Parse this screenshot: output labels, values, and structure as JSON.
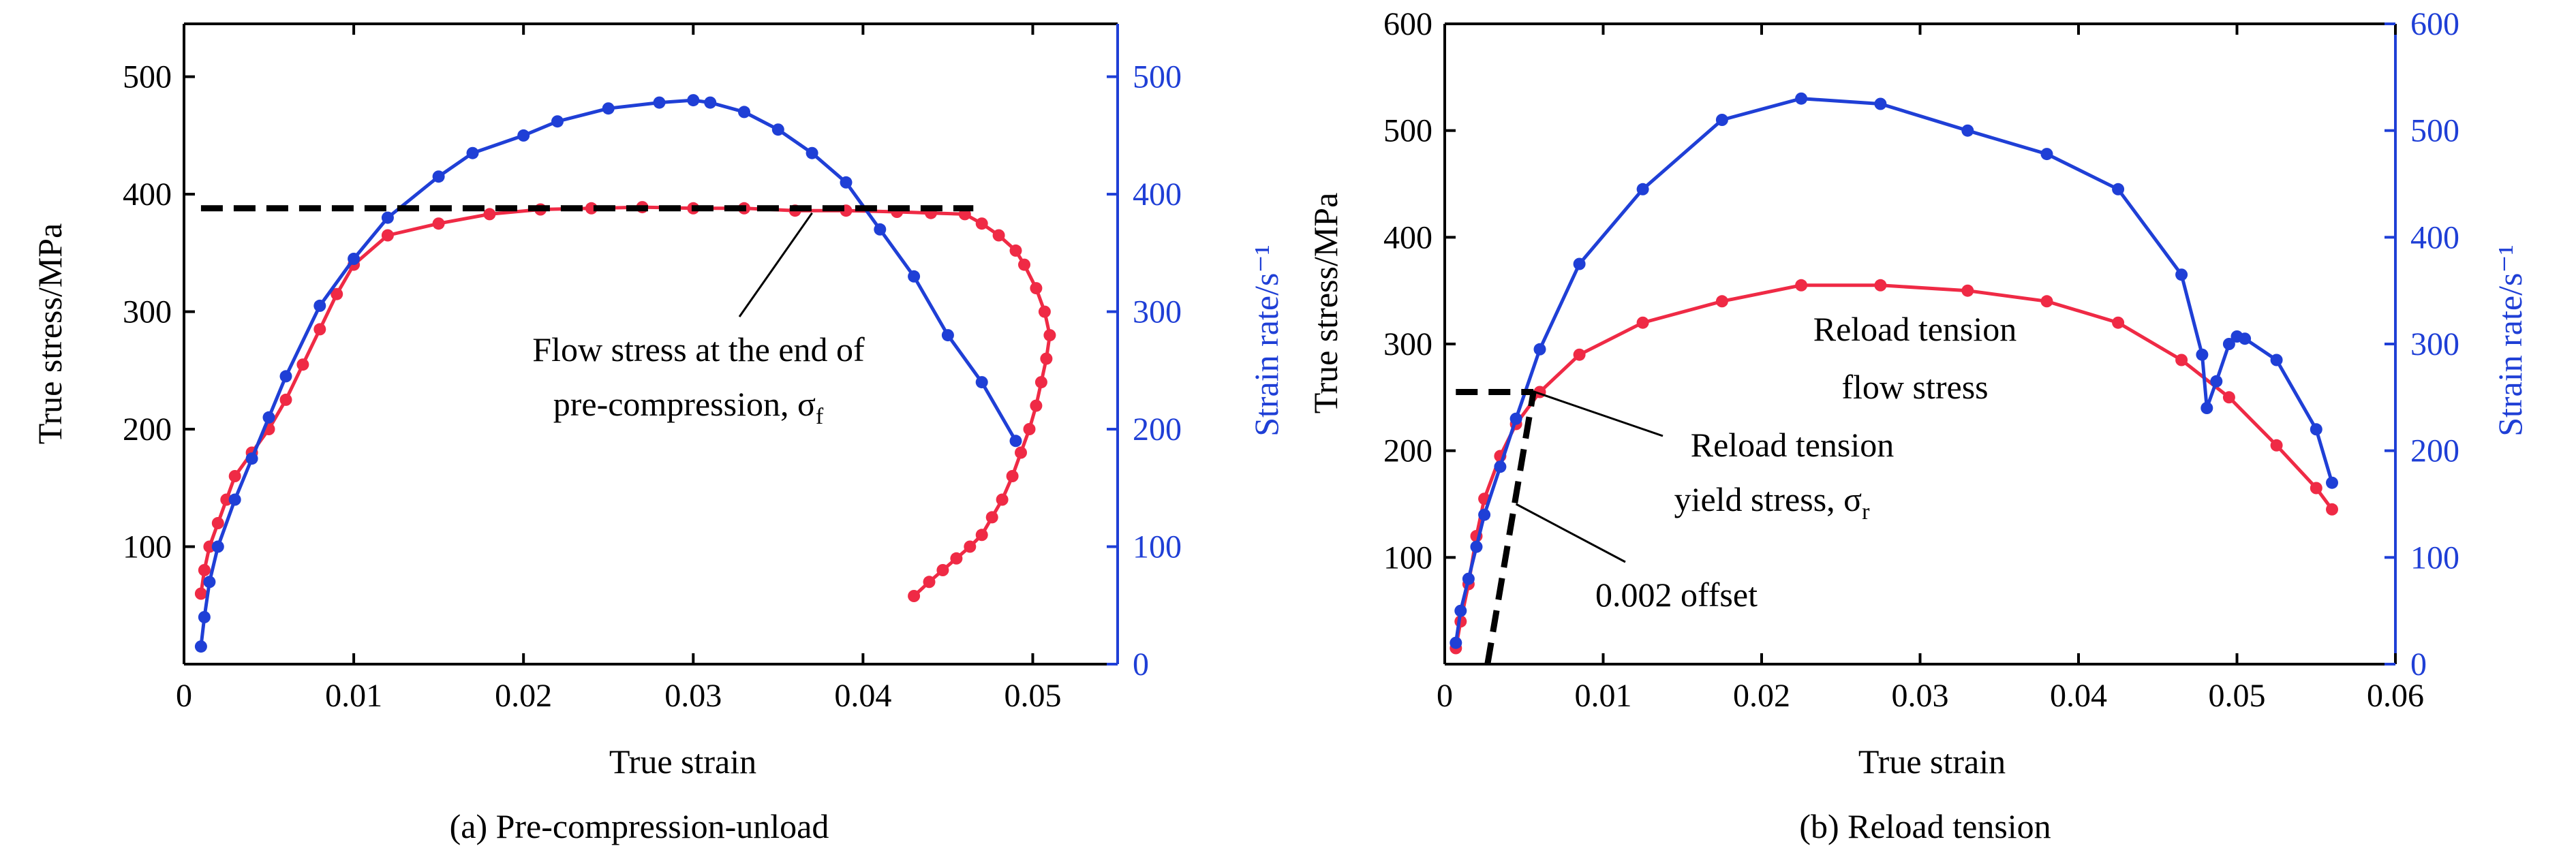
{
  "colors": {
    "stress": "#ef2a45",
    "rate": "#1f3fd6",
    "axis": "#000000"
  },
  "chart_data": [
    {
      "type": "line",
      "caption": "(a) Pre-compression-unload",
      "xlabel": "True strain",
      "ylabel": "True stress/MPa",
      "y2label": "Strain rate/s⁻¹",
      "xlim": [
        0,
        0.055
      ],
      "ylim": [
        0,
        545
      ],
      "y2lim": [
        0,
        545
      ],
      "x_ticks": [
        0,
        0.01,
        0.02,
        0.03,
        0.04,
        0.05
      ],
      "x_tick_labels": [
        "0",
        "0.01",
        "0.02",
        "0.03",
        "0.04",
        "0.05"
      ],
      "y_ticks": [
        100,
        200,
        300,
        400,
        500
      ],
      "y_tick_labels": [
        "100",
        "200",
        "300",
        "400",
        "500"
      ],
      "y2_ticks": [
        0,
        100,
        200,
        300,
        400,
        500
      ],
      "y2_tick_labels": [
        "0",
        "100",
        "200",
        "300",
        "400",
        "500"
      ],
      "series": [
        {
          "axis": "left",
          "color": "#ef2a45",
          "x": [
            0.001,
            0.0012,
            0.0015,
            0.002,
            0.0025,
            0.003,
            0.004,
            0.005,
            0.006,
            0.007,
            0.008,
            0.009,
            0.01,
            0.012,
            0.015,
            0.018,
            0.021,
            0.024,
            0.027,
            0.03,
            0.033,
            0.036,
            0.039,
            0.042,
            0.044,
            0.046,
            0.047,
            0.048,
            0.049,
            0.0495,
            0.0502,
            0.0507,
            0.051,
            0.0508,
            0.0505,
            0.0502,
            0.0498,
            0.0493,
            0.0488,
            0.0482,
            0.0476,
            0.047,
            0.0463,
            0.0455,
            0.0447,
            0.0439,
            0.043
          ],
          "y": [
            60,
            80,
            100,
            120,
            140,
            160,
            180,
            200,
            225,
            255,
            285,
            315,
            340,
            365,
            375,
            383,
            387,
            388,
            389,
            388,
            388,
            386,
            386,
            385,
            384,
            383,
            375,
            365,
            352,
            340,
            320,
            300,
            280,
            260,
            240,
            220,
            200,
            180,
            160,
            140,
            125,
            110,
            100,
            90,
            80,
            70,
            58
          ]
        },
        {
          "axis": "right",
          "color": "#1f3fd6",
          "x": [
            0.001,
            0.0012,
            0.0015,
            0.002,
            0.003,
            0.004,
            0.005,
            0.006,
            0.008,
            0.01,
            0.012,
            0.015,
            0.017,
            0.02,
            0.022,
            0.025,
            0.028,
            0.03,
            0.031,
            0.033,
            0.035,
            0.037,
            0.039,
            0.041,
            0.043,
            0.045,
            0.047,
            0.049
          ],
          "y": [
            15,
            40,
            70,
            100,
            140,
            175,
            210,
            245,
            305,
            345,
            380,
            415,
            435,
            450,
            462,
            473,
            478,
            480,
            478,
            470,
            455,
            435,
            410,
            370,
            330,
            280,
            240,
            190
          ]
        }
      ],
      "reference_line": {
        "y": 388,
        "x_from": 0.001,
        "x_to": 0.0465,
        "style": "dashed"
      },
      "annotations": [
        {
          "lines": [
            "Flow stress at the end of",
            "pre-compression, σ",
            "f"
          ],
          "points_to": [
            0.037,
            384
          ]
        }
      ]
    },
    {
      "type": "line",
      "caption": "(b) Reload tension",
      "xlabel": "True strain",
      "ylabel": "True stress/MPa",
      "y2label": "Strain rate/s⁻¹",
      "xlim": [
        0,
        0.06
      ],
      "ylim": [
        0,
        600
      ],
      "y2lim": [
        0,
        600
      ],
      "x_ticks": [
        0,
        0.01,
        0.02,
        0.03,
        0.04,
        0.05,
        0.06
      ],
      "x_tick_labels": [
        "0",
        "0.01",
        "0.02",
        "0.03",
        "0.04",
        "0.05",
        "0.06"
      ],
      "y_ticks": [
        100,
        200,
        300,
        400,
        500,
        600
      ],
      "y_tick_labels": [
        "100",
        "200",
        "300",
        "400",
        "500",
        "600"
      ],
      "y2_ticks": [
        0,
        100,
        200,
        300,
        400,
        500,
        600
      ],
      "y2_tick_labels": [
        "0",
        "100",
        "200",
        "300",
        "400",
        "500",
        "600"
      ],
      "series": [
        {
          "axis": "left",
          "color": "#ef2a45",
          "x": [
            0.0007,
            0.001,
            0.0015,
            0.002,
            0.0025,
            0.0035,
            0.0045,
            0.006,
            0.0085,
            0.0125,
            0.0175,
            0.0225,
            0.0275,
            0.033,
            0.038,
            0.0425,
            0.0465,
            0.0495,
            0.0525,
            0.055,
            0.056
          ],
          "y": [
            15,
            40,
            75,
            120,
            155,
            195,
            225,
            255,
            290,
            320,
            340,
            355,
            355,
            350,
            340,
            320,
            285,
            250,
            205,
            165,
            145
          ]
        },
        {
          "axis": "right",
          "color": "#1f3fd6",
          "x": [
            0.0007,
            0.001,
            0.0015,
            0.002,
            0.0025,
            0.0035,
            0.0045,
            0.006,
            0.0085,
            0.0125,
            0.0175,
            0.0225,
            0.0275,
            0.033,
            0.038,
            0.0425,
            0.0465,
            0.0478,
            0.0481,
            0.0487,
            0.0495,
            0.05,
            0.0505,
            0.0525,
            0.055,
            0.056
          ],
          "y": [
            20,
            50,
            80,
            110,
            140,
            185,
            230,
            295,
            375,
            445,
            510,
            530,
            525,
            500,
            478,
            445,
            365,
            290,
            240,
            265,
            300,
            307,
            305,
            285,
            220,
            170
          ]
        }
      ],
      "offset_line": {
        "slope_mpa": 100000,
        "offset_strain": 0.002,
        "x_from": 0.0027,
        "x_to": 0.0056,
        "style": "dashed"
      },
      "reference_line": {
        "y": 255,
        "x_from": 0.0007,
        "x_to": 0.0056,
        "style": "dashed"
      },
      "annotations": [
        {
          "lines": [
            "Reload tension",
            "flow stress"
          ],
          "points_to": null
        },
        {
          "lines": [
            "Reload tension",
            "yield stress, σ",
            "r"
          ],
          "points_to": [
            0.0055,
            256
          ]
        },
        {
          "lines": [
            "0.002 offset"
          ],
          "points_to": [
            0.0045,
            150
          ]
        }
      ]
    }
  ]
}
